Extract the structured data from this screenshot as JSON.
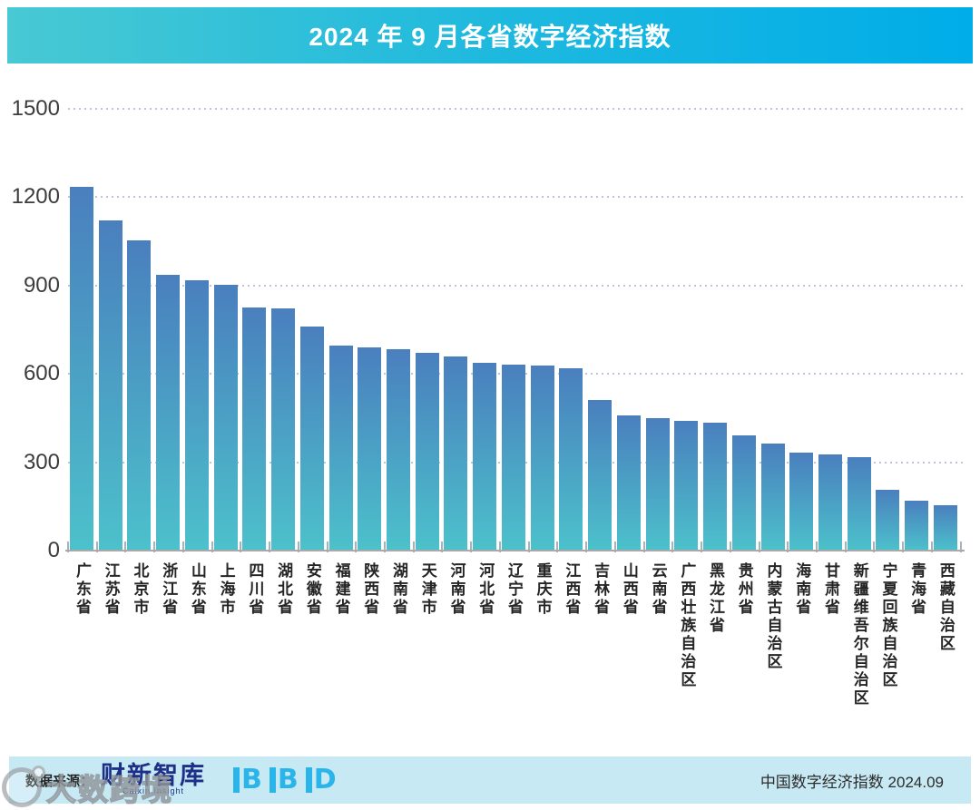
{
  "header": {
    "title": "2024 年 9 月各省数字经济指数"
  },
  "chart_data": {
    "type": "bar",
    "title": "2024 年 9 月各省数字经济指数",
    "categories": [
      "广东省",
      "江苏省",
      "北京市",
      "浙江省",
      "山东省",
      "上海市",
      "四川省",
      "湖北省",
      "安徽省",
      "福建省",
      "陕西省",
      "湖南省",
      "天津市",
      "河南省",
      "河北省",
      "辽宁省",
      "重庆市",
      "江西省",
      "吉林省",
      "山西省",
      "云南省",
      "广西壮族自治区",
      "黑龙江省",
      "贵州省",
      "内蒙古自治区",
      "海南省",
      "甘肃省",
      "新疆维吾尔自治区",
      "宁夏回族自治区",
      "青海省",
      "西藏自治区"
    ],
    "values": [
      1235,
      1121,
      1052,
      936,
      918,
      902,
      827,
      823,
      762,
      697,
      689,
      684,
      672,
      660,
      638,
      633,
      629,
      619,
      512,
      458,
      451,
      442,
      435,
      391,
      363,
      333,
      327,
      316,
      205,
      170,
      155
    ],
    "xlabel": "",
    "ylabel": "",
    "ylim": [
      0,
      1500
    ],
    "yticks": [
      0,
      300,
      600,
      900,
      1200,
      1500
    ],
    "grid": "horizontal-dotted",
    "legend": "none",
    "bar_gradient_top": "#4a7fbe",
    "bar_gradient_bottom": "#4cc1cb"
  },
  "footer": {
    "source_label": "数据来源：",
    "caixin": "财新智库",
    "caixin_sub": "Caixin Insight",
    "bbd_letters": [
      "B",
      "B",
      "D"
    ],
    "right_text": "中国数字经济指数 2024.09"
  },
  "watermark": {
    "text": "大数跨境"
  },
  "colors": {
    "header_gradient_left": "#48c9d3",
    "header_gradient_right": "#00ade8",
    "bar_top": "#4a7fbe",
    "bar_bottom": "#4cc1cb",
    "footer_bg": "#c7e9f4",
    "caixin_navy": "#1d2f87",
    "bbd_cyan": "#2ab5ea",
    "gridline": "#bcc5db",
    "axis": "#a9a9a9",
    "label_text": "#3c3c3c"
  }
}
